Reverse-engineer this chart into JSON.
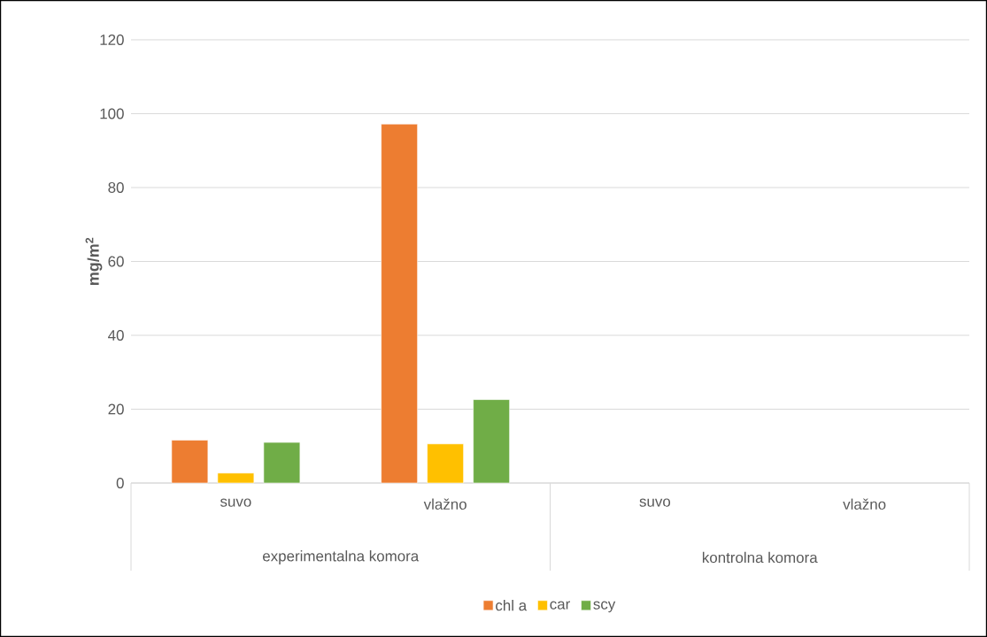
{
  "chart_data": {
    "type": "bar",
    "ylabel": "mg/m$^{2}$",
    "categories": [
      "suvo",
      "vlažno",
      "suvo",
      "vlažno"
    ],
    "series": [
      {
        "name": "chl a",
        "color": "#ed7d31",
        "values": [
          11.6,
          97.2,
          null,
          null
        ]
      },
      {
        "name": "car",
        "color": "#ffc000",
        "values": [
          2.7,
          10.6,
          null,
          null
        ]
      },
      {
        "name": "scy",
        "color": "#70ad47",
        "values": [
          11.0,
          22.6,
          null,
          null
        ]
      }
    ],
    "ylim": [
      0,
      120
    ],
    "yticks": [
      0,
      20,
      40,
      60,
      80,
      100,
      120
    ],
    "grid": "y",
    "legend": "bottom",
    "annotations": [
      "experimentalna komora",
      "kontrolna komora"
    ]
  }
}
